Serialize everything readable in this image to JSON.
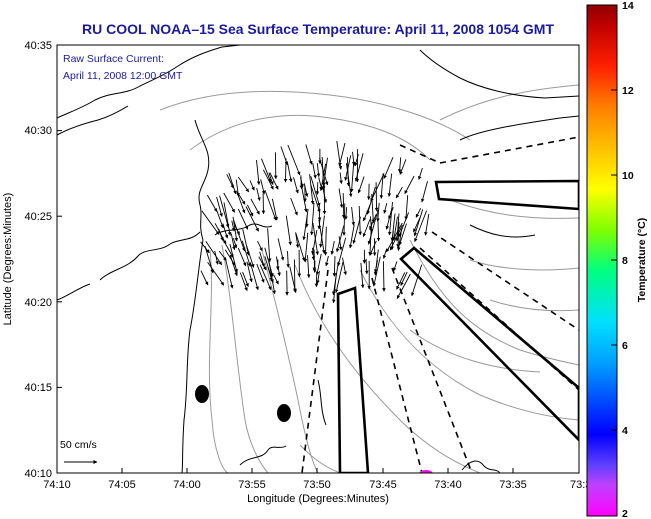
{
  "map": {
    "title": "RU COOL  NOAA–15  Sea Surface Temperature:  April 11, 2008 1054 GMT",
    "subtitle_line1": "Raw Surface Current:",
    "subtitle_line2": "April 11, 2008 12:00 GMT",
    "xlabel": "Longitude (Degrees:Minutes)",
    "ylabel": "Latitude (Degrees:Minutes)",
    "x_ticks": [
      "74:10",
      "74:05",
      "74:00",
      "73:55",
      "73:50",
      "73:45",
      "73:40",
      "73:35",
      "73:3"
    ],
    "y_ticks": [
      "40:35",
      "40:30",
      "40:25",
      "40:20",
      "40:15",
      "40:10"
    ],
    "scale_label": "50 cm/s"
  },
  "colorbar": {
    "label": "Temperature (°C)",
    "ticks": [
      "14",
      "12",
      "10",
      "8",
      "6",
      "4",
      "2"
    ],
    "range": [
      2,
      14
    ]
  },
  "colors": {
    "title": "#1a1aa0",
    "land_outline": "#000000",
    "bathymetry": "#999999"
  }
}
